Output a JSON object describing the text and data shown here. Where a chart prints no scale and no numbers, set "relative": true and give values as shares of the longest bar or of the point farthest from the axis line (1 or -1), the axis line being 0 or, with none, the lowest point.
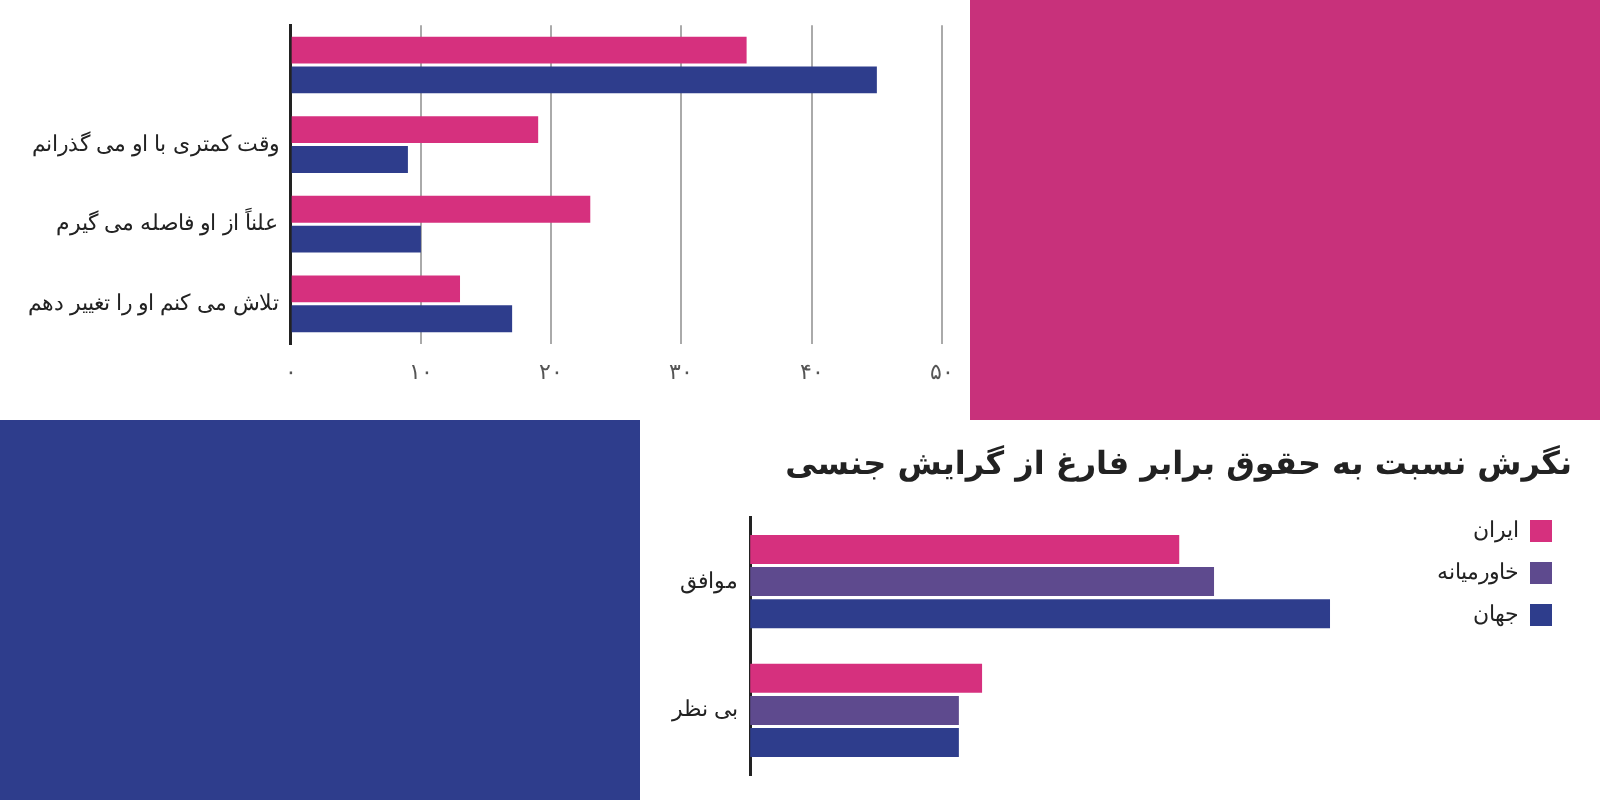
{
  "chart_data": [
    {
      "type": "bar",
      "orientation": "horizontal",
      "categories": [
        null,
        "وقت کمتری با او می گذرانم",
        "علناً از او فاصله می گیرم",
        "تلاش می کنم او را تغییر دهم"
      ],
      "series": [
        {
          "color": "#d6307e",
          "values": [
            35,
            19,
            23,
            13
          ]
        },
        {
          "color": "#2e3d8c",
          "values": [
            45,
            9,
            10,
            17
          ]
        }
      ],
      "xlim": [
        0,
        50
      ],
      "xticks": [
        {
          "value": 0,
          "label": "۰"
        },
        {
          "value": 10,
          "label": "۱۰"
        },
        {
          "value": 20,
          "label": "۲۰"
        },
        {
          "value": 30,
          "label": "۳۰"
        },
        {
          "value": 40,
          "label": "۴۰"
        },
        {
          "value": 50,
          "label": "۵۰"
        }
      ],
      "grid": "x",
      "legend": false
    },
    {
      "type": "bar",
      "orientation": "horizontal",
      "title": "نگرش نسبت به حقوق برابر فارغ از گرایش جنسی",
      "categories": [
        "موافق",
        "بی نظر"
      ],
      "relative": true,
      "series": [
        {
          "name": "ایران",
          "color": "#d6307e",
          "values": [
            0.74,
            0.4
          ]
        },
        {
          "name": "خاورمیانه",
          "color": "#5e4a8e",
          "values": [
            0.8,
            0.36
          ]
        },
        {
          "name": "جهان",
          "color": "#2e3d8c",
          "values": [
            1,
            0.36
          ]
        }
      ],
      "legend": "right"
    }
  ]
}
